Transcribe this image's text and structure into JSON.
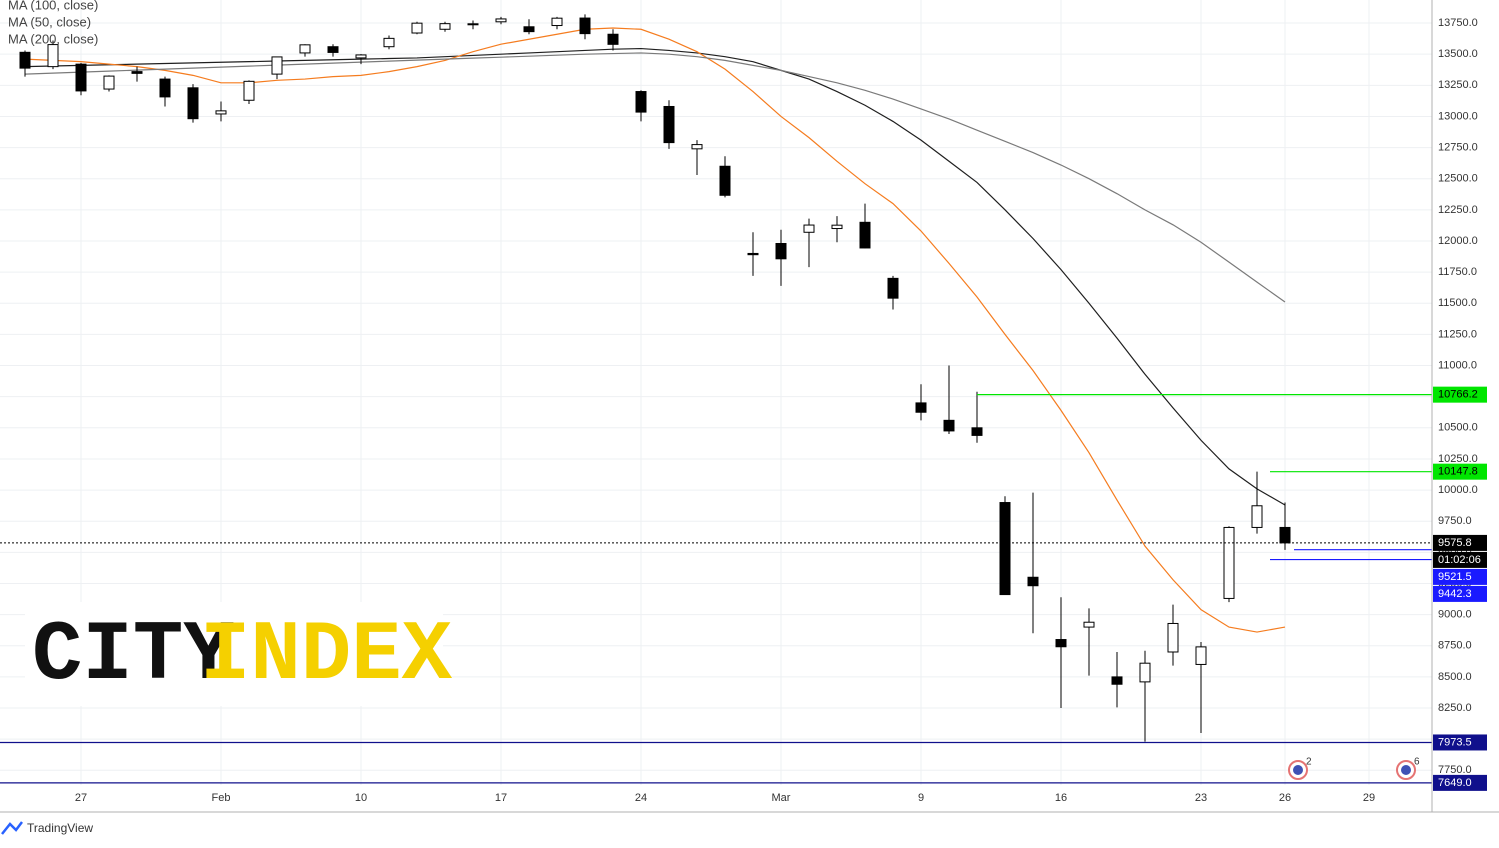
{
  "chart_data": {
    "type": "candlestick",
    "categories": [
      null,
      null,
      "27",
      null,
      null,
      null,
      null,
      "Feb",
      null,
      null,
      null,
      null,
      "10",
      null,
      null,
      null,
      null,
      "17",
      null,
      null,
      null,
      null,
      "24",
      null,
      null,
      null,
      null,
      "Mar",
      null,
      null,
      null,
      null,
      "9",
      null,
      null,
      null,
      null,
      "16",
      null,
      null,
      null,
      null,
      "23",
      null,
      null,
      "26",
      null,
      null,
      "29"
    ],
    "open": [
      13515,
      13400,
      13420,
      13220,
      13360,
      13300,
      13230,
      13020,
      13130,
      13340,
      13510,
      13560,
      13470,
      13560,
      13670,
      13700,
      13740,
      13760,
      13720,
      13730,
      13790,
      13660,
      13200,
      13080,
      12740,
      12600,
      11900,
      11980,
      12070,
      12100,
      12150,
      11700,
      10700,
      10560,
      10500,
      9900,
      9300,
      8800,
      8900,
      8500,
      8460,
      8700,
      8600,
      9130,
      9700,
      9700,
      null,
      null,
      null
    ],
    "high": [
      13530,
      13610,
      13430,
      13330,
      13400,
      13320,
      13260,
      13120,
      13290,
      13480,
      13580,
      13580,
      13500,
      13650,
      13760,
      13760,
      13770,
      13800,
      13780,
      13800,
      13820,
      13700,
      13210,
      13130,
      12810,
      12680,
      12070,
      12090,
      12180,
      12200,
      12300,
      11720,
      10850,
      11000,
      10790,
      9950,
      9980,
      9140,
      9050,
      8700,
      8710,
      9080,
      8780,
      9710,
      10148,
      9900,
      null,
      null,
      null
    ],
    "low": [
      13320,
      13380,
      13170,
      13200,
      13280,
      13080,
      12950,
      12960,
      13100,
      13300,
      13480,
      13480,
      13420,
      13540,
      13660,
      13680,
      13700,
      13740,
      13660,
      13700,
      13620,
      13530,
      12960,
      12740,
      12530,
      12350,
      11720,
      11640,
      11790,
      11990,
      11940,
      11450,
      10560,
      10450,
      10380,
      9160,
      8850,
      8250,
      8510,
      8255,
      7980,
      8590,
      8050,
      9100,
      9650,
      9520,
      null,
      null,
      null
    ],
    "close": [
      13388,
      13577,
      13205,
      13324,
      13346,
      13157,
      12982,
      13045,
      13282,
      13478,
      13575,
      13514,
      13494,
      13627,
      13749,
      13745,
      13744,
      13783,
      13681,
      13789,
      13665,
      13579,
      13035,
      12790,
      12774,
      12367,
      11890,
      11857,
      12128,
      12127,
      11944,
      11541,
      10625,
      10475,
      10439,
      9161,
      9232,
      8742,
      8939,
      8441,
      8610,
      8929,
      8741,
      9700,
      9874,
      9576,
      null,
      null,
      null
    ],
    "up_color": "#ffffff",
    "down_color": "#000000",
    "wick_color": "#000000",
    "series": [
      {
        "name": "MA (100, close)",
        "color": "#1f1f1f",
        "values": [
          13400,
          13405,
          13410,
          13415,
          13420,
          13425,
          13430,
          13435,
          13440,
          13445,
          13450,
          13455,
          13460,
          13465,
          13470,
          13480,
          13490,
          13500,
          13510,
          13520,
          13530,
          13540,
          13545,
          13530,
          13510,
          13480,
          13440,
          13370,
          13300,
          13200,
          13090,
          12960,
          12810,
          12640,
          12470,
          12250,
          12020,
          11770,
          11500,
          11220,
          10930,
          10660,
          10400,
          10170,
          10010,
          9880,
          null,
          null,
          null
        ]
      },
      {
        "name": "MA (50, close)",
        "color": "#f57c1f",
        "values": [
          13460,
          13450,
          13440,
          13420,
          13400,
          13370,
          13330,
          13270,
          13270,
          13290,
          13300,
          13320,
          13330,
          13360,
          13400,
          13450,
          13520,
          13580,
          13620,
          13660,
          13700,
          13710,
          13700,
          13620,
          13520,
          13380,
          13200,
          13000,
          12830,
          12640,
          12460,
          12300,
          12080,
          11820,
          11550,
          11250,
          10960,
          10640,
          10300,
          9920,
          9550,
          9280,
          9040,
          8900,
          8860,
          8900,
          null,
          null,
          null
        ]
      },
      {
        "name": "MA (200, close)",
        "color": "#7a7a7a",
        "values": [
          13340,
          13348,
          13356,
          13364,
          13372,
          13380,
          13388,
          13396,
          13404,
          13412,
          13420,
          13428,
          13436,
          13444,
          13452,
          13460,
          13468,
          13476,
          13484,
          13492,
          13500,
          13505,
          13510,
          13500,
          13480,
          13450,
          13410,
          13370,
          13320,
          13270,
          13210,
          13140,
          13060,
          12980,
          12890,
          12800,
          12710,
          12610,
          12500,
          12380,
          12250,
          12130,
          11990,
          11830,
          11670,
          11510,
          null,
          null,
          null
        ]
      }
    ],
    "levels": [
      {
        "value": 10766.2,
        "color": "#00e600",
        "text_color": "#000000"
      },
      {
        "value": 10147.8,
        "color": "#00e600",
        "text_color": "#000000"
      },
      {
        "value": 9575.8,
        "color": "#000000",
        "text_color": "#ffffff",
        "countdown": "01:02:06"
      },
      {
        "value": 9521.5,
        "color": "#1a1aff",
        "text_color": "#ffffff"
      },
      {
        "value": 9442.3,
        "color": "#1a1aff",
        "text_color": "#ffffff"
      },
      {
        "value": 7973.5,
        "color": "#10108c",
        "text_color": "#ffffff"
      },
      {
        "value": 7649,
        "label": "7649.0",
        "color": "#10108c",
        "text_color": "#ffffff"
      }
    ],
    "events": [
      2,
      6
    ],
    "ylim": [
      7632,
      13935
    ],
    "yticks": [
      {
        "value": 7750,
        "label": "7750.0"
      },
      {
        "value": 8000,
        "label": "8000.0"
      },
      {
        "value": 8250,
        "label": "8250.0"
      },
      {
        "value": 8500,
        "label": "8500.0"
      },
      {
        "value": 8750,
        "label": "8750.0"
      },
      {
        "value": 9000,
        "label": "9000.0"
      },
      {
        "value": 9250,
        "label": "9250.0"
      },
      {
        "value": 9500,
        "label": "9500.0"
      },
      {
        "value": 9750,
        "label": "9750.0"
      },
      {
        "value": 10000,
        "label": "10000.0"
      },
      {
        "value": 10250,
        "label": "10250.0"
      },
      {
        "value": 10500,
        "label": "10500.0"
      },
      {
        "value": 10750,
        "label": "10750.0"
      },
      {
        "value": 11000,
        "label": "11000.0"
      },
      {
        "value": 11250,
        "label": "11250.0"
      },
      {
        "value": 11500,
        "label": "11500.0"
      },
      {
        "value": 11750,
        "label": "11750.0"
      },
      {
        "value": 12000,
        "label": "12000.0"
      },
      {
        "value": 12250,
        "label": "12250.0"
      },
      {
        "value": 12500,
        "label": "12500.0"
      },
      {
        "value": 12750,
        "label": "12750.0"
      },
      {
        "value": 13000,
        "label": "13000.0"
      },
      {
        "value": 13250,
        "label": "13250.0"
      },
      {
        "value": 13500,
        "label": "13500.0"
      },
      {
        "value": 13750,
        "label": "13750.0"
      }
    ],
    "grid": true
  },
  "watermark": {
    "left": "CITY",
    "right": "INDEX"
  },
  "footer": {
    "brand": "TradingView"
  }
}
